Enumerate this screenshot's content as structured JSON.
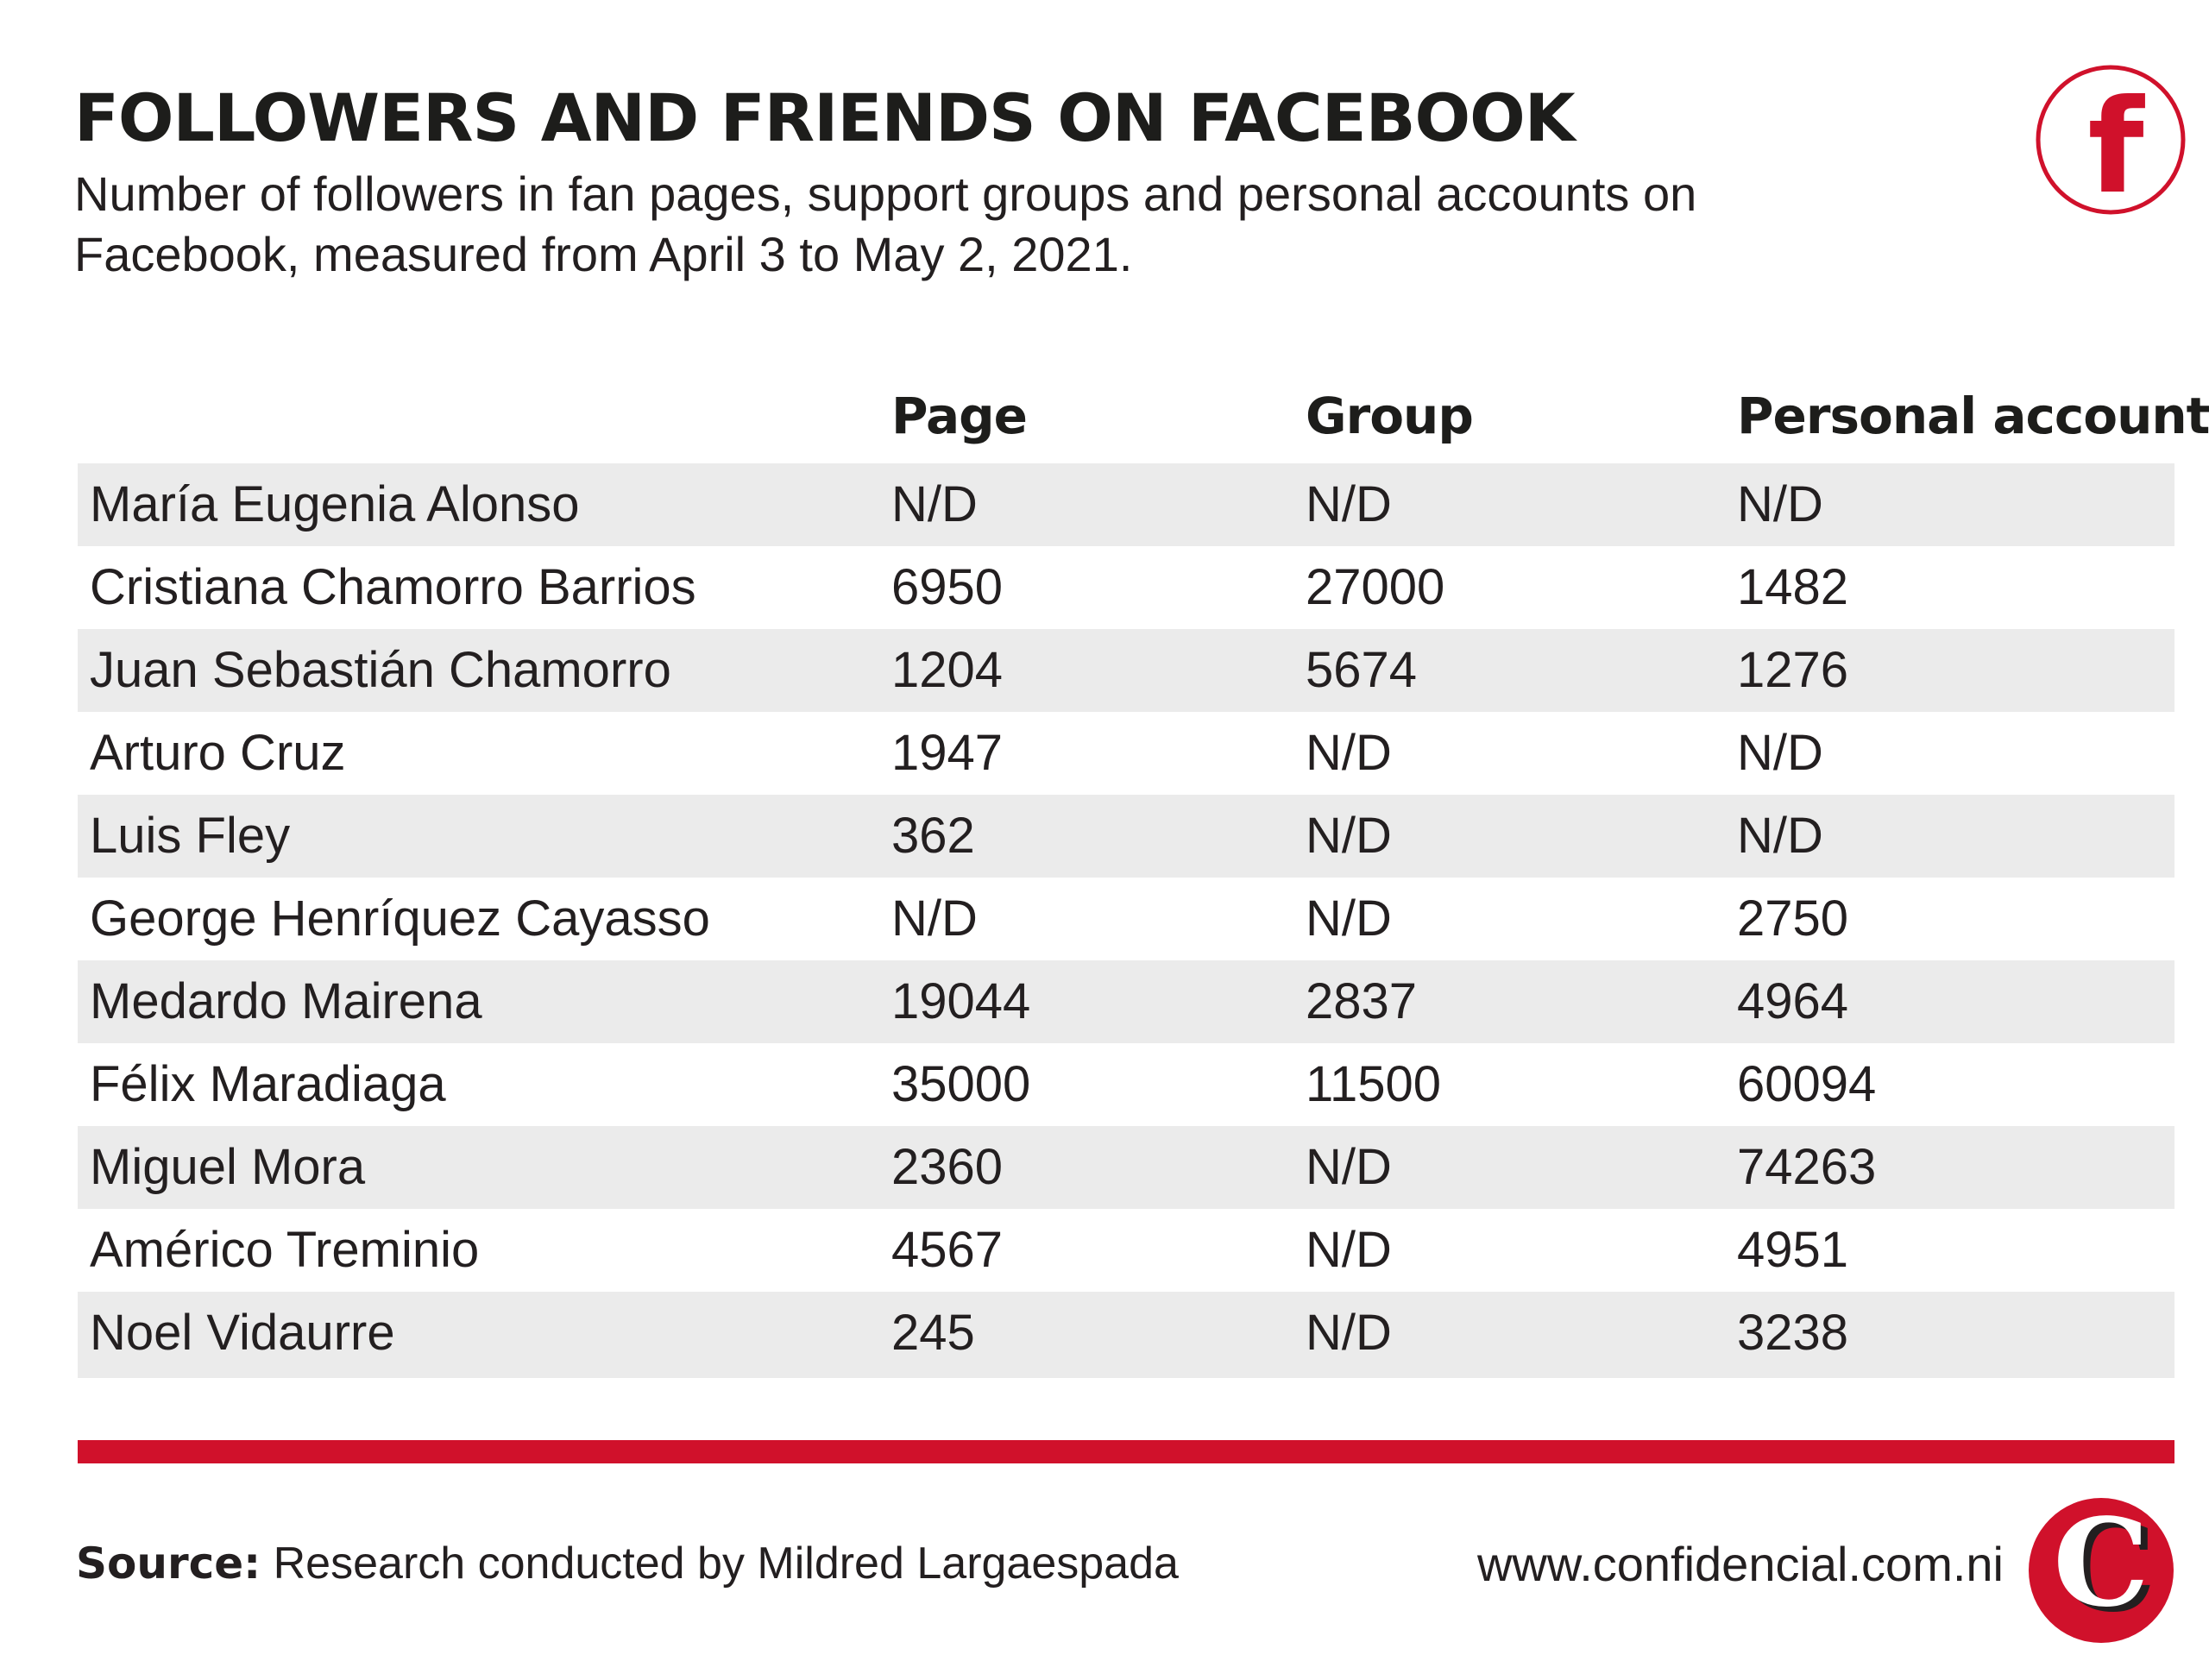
{
  "title": "FOLLOWERS AND FRIENDS ON FACEBOOK",
  "subtitle": "Number of followers in fan pages, support groups and personal accounts on Facebook, measured from April 3 to May 2, 2021.",
  "logo_letter": "f",
  "brand_letter": "C",
  "colors": {
    "accent": "#d0112b",
    "row_shade": "#ebebeb",
    "text": "#231f20"
  },
  "chart_data": {
    "type": "table",
    "columns": [
      "Page",
      "Group",
      "Personal account"
    ],
    "rows": [
      {
        "name": "María Eugenia Alonso",
        "page": "N/D",
        "group": "N/D",
        "personal": "N/D"
      },
      {
        "name": "Cristiana Chamorro Barrios",
        "page": "6950",
        "group": "27000",
        "personal": "1482"
      },
      {
        "name": "Juan Sebastián Chamorro",
        "page": "1204",
        "group": "5674",
        "personal": "1276"
      },
      {
        "name": "Arturo Cruz",
        "page": "1947",
        "group": "N/D",
        "personal": "N/D"
      },
      {
        "name": "Luis Fley",
        "page": "362",
        "group": "N/D",
        "personal": "N/D"
      },
      {
        "name": "George Henríquez Cayasso",
        "page": "N/D",
        "group": "N/D",
        "personal": "2750"
      },
      {
        "name": "Medardo Mairena",
        "page": "19044",
        "group": "2837",
        "personal": "4964"
      },
      {
        "name": "Félix Maradiaga",
        "page": "35000",
        "group": "11500",
        "personal": "60094"
      },
      {
        "name": "Miguel Mora",
        "page": "2360",
        "group": "N/D",
        "personal": "74263"
      },
      {
        "name": "Américo Treminio",
        "page": "4567",
        "group": "N/D",
        "personal": "4951"
      },
      {
        "name": "Noel Vidaurre",
        "page": "245",
        "group": "N/D",
        "personal": "3238"
      }
    ]
  },
  "footer": {
    "source_label": "Source:",
    "source_text": "Research conducted by Mildred Largaespada",
    "website": "www.confidencial.com.ni"
  }
}
